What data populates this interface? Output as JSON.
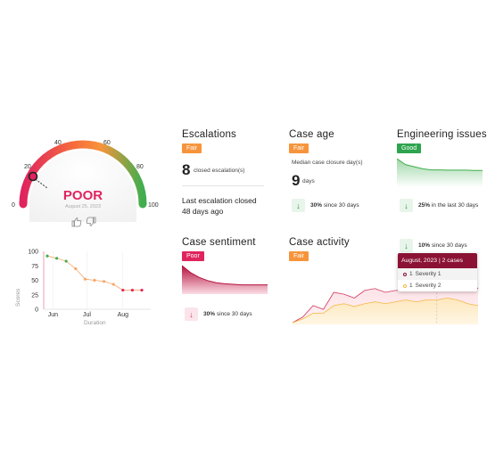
{
  "gauge": {
    "status": "POOR",
    "date": "August 25, 2023",
    "value": 25,
    "min_label": "0",
    "max_label": "100",
    "tick_labels": [
      "20",
      "40",
      "60",
      "80"
    ],
    "colors": {
      "poor": "#e0245e",
      "fair": "#f7943b",
      "good": "#3fae4f"
    }
  },
  "score_chart": {
    "ylabel": "Scores",
    "xlabel": "Duration",
    "y_ticks": [
      "100",
      "75",
      "50",
      "25",
      "0"
    ],
    "x_ticks": [
      "Jun",
      "Jul",
      "Aug"
    ]
  },
  "chart_data": [
    {
      "type": "line",
      "title": "",
      "xlabel": "Duration",
      "ylabel": "Scores",
      "ylim": [
        0,
        100
      ],
      "categories": [
        "Jun",
        "Jul",
        "Aug"
      ],
      "x": [
        0,
        0.5,
        1,
        1.5,
        2,
        2.5,
        3,
        3.5,
        4,
        4.5,
        5
      ],
      "series": [
        {
          "values": [
            92,
            88,
            83,
            70,
            52,
            50,
            48,
            43,
            33,
            33,
            33
          ]
        }
      ]
    },
    {
      "type": "area",
      "title": "",
      "series": [
        {
          "values": [
            100,
            78,
            70,
            62,
            58,
            58,
            57,
            57,
            57,
            56,
            56
          ]
        }
      ]
    },
    {
      "type": "area",
      "title": "",
      "series": [
        {
          "values": [
            100,
            74,
            56,
            44,
            36,
            32,
            30,
            28,
            28,
            28,
            28
          ]
        }
      ]
    },
    {
      "type": "area",
      "title": "",
      "x": [
        "",
        "",
        "",
        "",
        "",
        "",
        "",
        "",
        "",
        "",
        "",
        "",
        "",
        "",
        "August, 2023",
        "",
        "",
        "",
        ""
      ],
      "series": [
        {
          "values": [
            0,
            6,
            18,
            14,
            32,
            30,
            26,
            34,
            36,
            32,
            34,
            34,
            34,
            40,
            58,
            64,
            54,
            44,
            36
          ]
        },
        {
          "values": [
            0,
            4,
            10,
            10,
            18,
            20,
            17,
            20,
            22,
            20,
            22,
            24,
            22,
            24,
            24,
            26,
            24,
            20,
            18
          ]
        }
      ]
    }
  ],
  "escalations": {
    "title": "Escalations",
    "badge": "Fair",
    "count": "8",
    "count_label": "closed escalation(s)",
    "last_closed_line1": "Last escalation closed",
    "last_closed_line2": "48 days ago"
  },
  "case_age": {
    "title": "Case age",
    "badge": "Fair",
    "median_label": "Median case closure day(s)",
    "value": "9",
    "unit": "days",
    "trend_pct": "30%",
    "trend_text": "since 30 days"
  },
  "engineering": {
    "title": "Engineering issues",
    "badge": "Good",
    "trend_pct": "25%",
    "trend_text": "in the last 30 days"
  },
  "sentiment": {
    "title": "Case sentiment",
    "badge": "Poor",
    "trend_pct": "30%",
    "trend_text": "since 30 days"
  },
  "activity": {
    "title": "Case activity",
    "badge": "Fair",
    "trend_pct": "10%",
    "trend_text": "since 30 days",
    "tooltip": {
      "header": "August, 2023 | 2 cases",
      "rows": [
        {
          "count": "1",
          "label": "Severity 1"
        },
        {
          "count": "1",
          "label": "Severity 2"
        }
      ]
    }
  }
}
